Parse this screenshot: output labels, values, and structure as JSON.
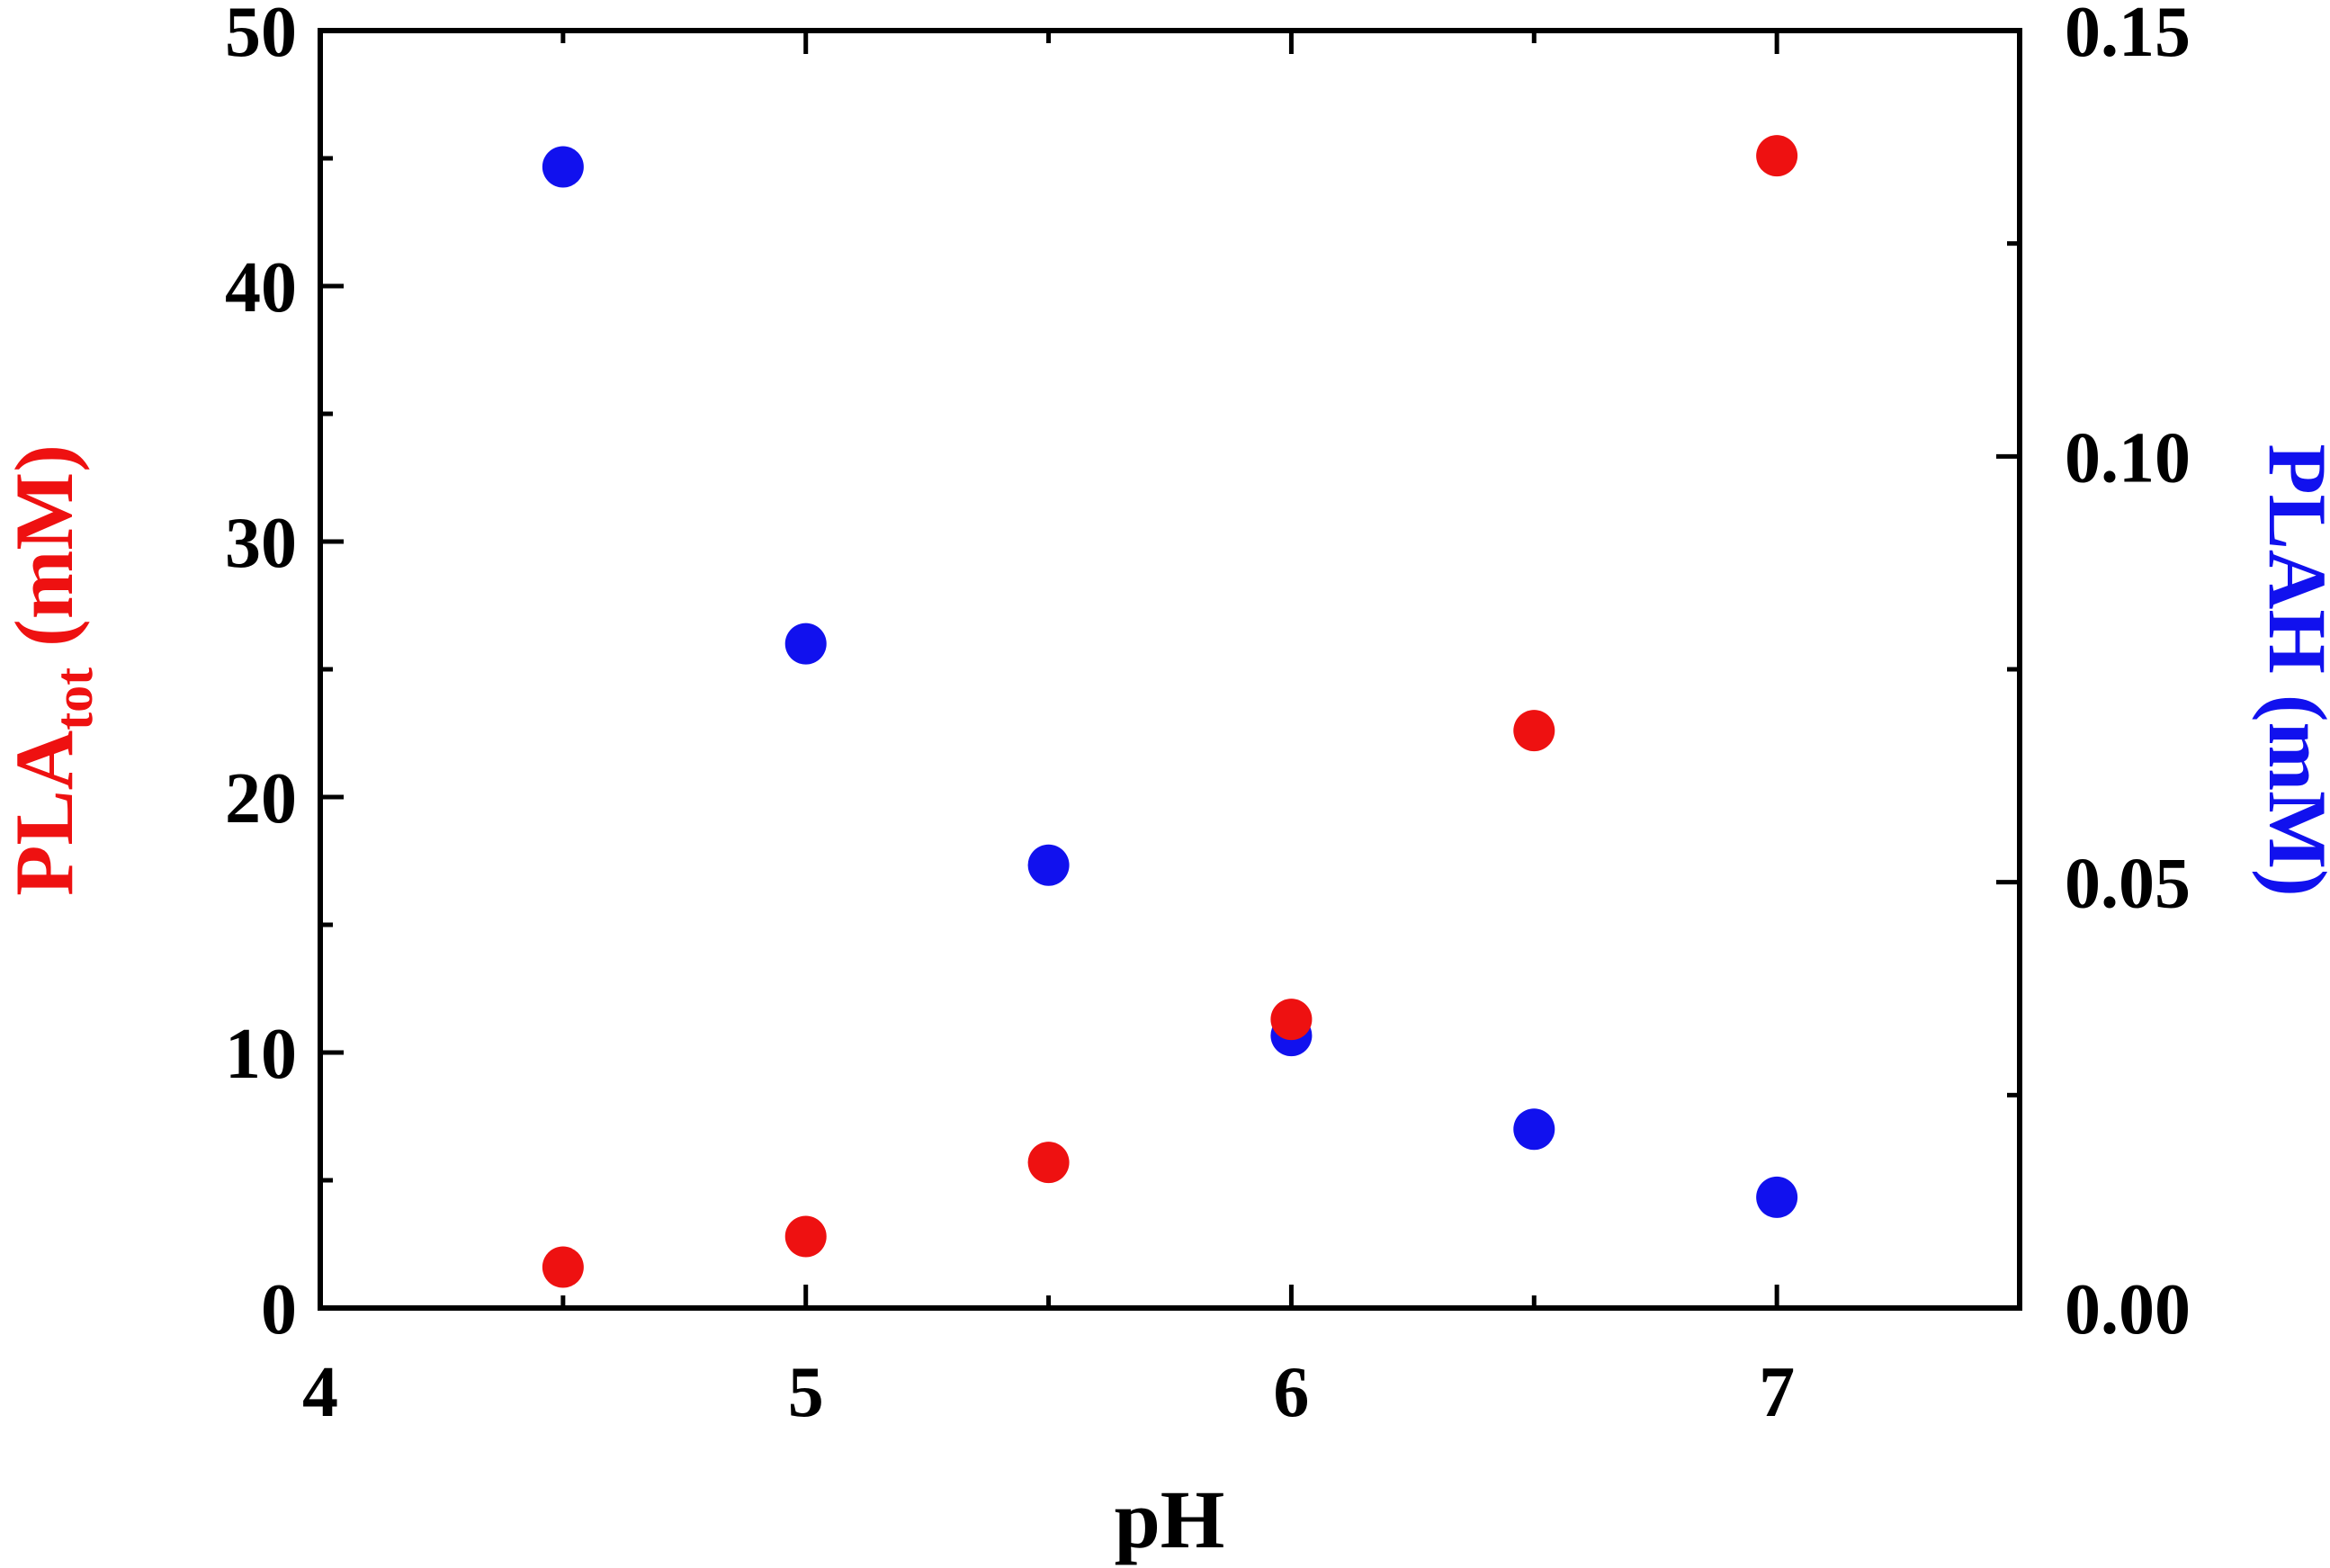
{
  "chart_data": {
    "type": "scatter",
    "title": "",
    "xlabel": "pH",
    "ylabel": {
      "main": "PLA",
      "subscript": "tot",
      "unit": " (mM)",
      "color": "#ee1111"
    },
    "y2label": {
      "text": "PLAH (mM)",
      "color": "#1111ee"
    },
    "xlim": [
      4,
      7.5
    ],
    "ylim": [
      0,
      50
    ],
    "y2lim": [
      0,
      0.15
    ],
    "x_ticks": [
      "4",
      "5",
      "6",
      "7"
    ],
    "y_ticks": [
      "0",
      "10",
      "20",
      "30",
      "40",
      "50"
    ],
    "y2_ticks": [
      "0.00",
      "0.05",
      "0.10",
      "0.15"
    ],
    "grid": false,
    "legend": "none",
    "series": [
      {
        "axis": "left",
        "color": "#ee1111",
        "x": [
          4.5,
          5.0,
          5.5,
          6.0,
          6.5,
          7.0
        ],
        "y": [
          1.6,
          2.8,
          5.7,
          11.3,
          22.6,
          45.1
        ]
      },
      {
        "axis": "right",
        "color": "#1111ee",
        "x": [
          4.5,
          5.0,
          5.5,
          6.0,
          6.5,
          7.0
        ],
        "y": [
          0.134,
          0.078,
          0.052,
          0.032,
          0.021,
          0.013
        ]
      }
    ]
  }
}
